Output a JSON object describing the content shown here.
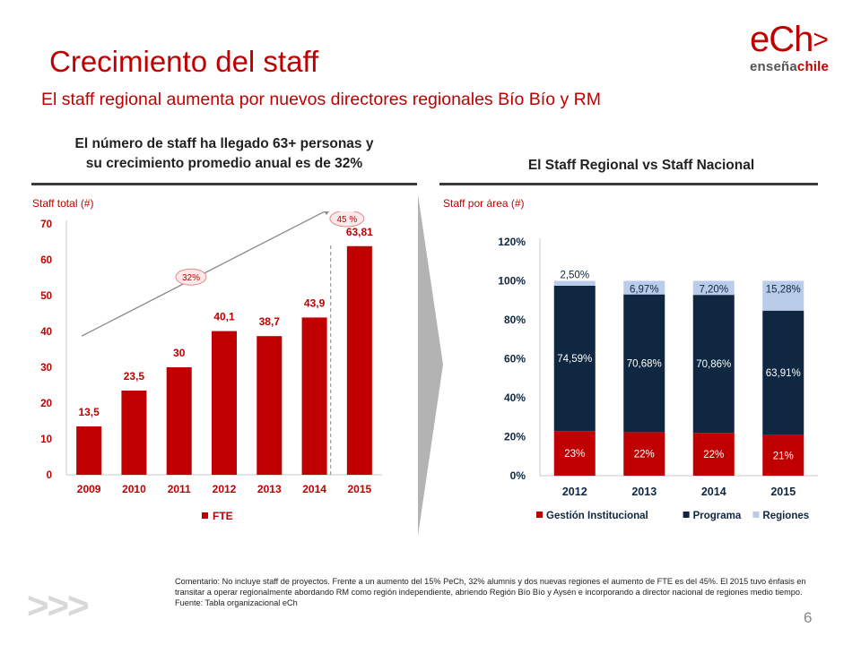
{
  "title": "Crecimiento del staff",
  "subtitle": "El staff regional aumenta por nuevos directores regionales Bío Bío y RM",
  "logo": {
    "main": "eCh",
    "arrow": ">",
    "tag_a": "enseña",
    "tag_b": "chile"
  },
  "left": {
    "heading_line1": "El número de staff ha llegado 63+ personas y",
    "heading_line2": "su crecimiento promedio anual es de 32%",
    "axis_label": "Staff total (#)"
  },
  "right": {
    "heading": "El Staff Regional vs Staff Nacional",
    "axis_label": "Staff por área (#)"
  },
  "colors": {
    "brand_red": "#c00000",
    "dark_navy": "#0f2740",
    "light_blue": "#b9cdea",
    "bar_red": "#c00000"
  },
  "chart_data": [
    {
      "type": "bar",
      "categories": [
        "2009",
        "2010",
        "2011",
        "2012",
        "2013",
        "2014",
        "2015"
      ],
      "values": [
        13.5,
        23.5,
        30,
        40.1,
        38.7,
        43.9,
        63.81
      ],
      "data_labels": [
        "13,5",
        "23,5",
        "30",
        "40,1",
        "38,7",
        "43,9",
        "63,81"
      ],
      "series_name": "FTE",
      "ylim": [
        0,
        70
      ],
      "yticks": [
        0,
        10,
        20,
        30,
        40,
        50,
        60,
        70
      ],
      "grid": false,
      "legend": "bottom",
      "annotations": [
        {
          "text": "32%",
          "kind": "growth-arrow"
        },
        {
          "text": "45 %",
          "kind": "bubble-2015"
        }
      ]
    },
    {
      "type": "bar",
      "stacked": true,
      "categories": [
        "2012",
        "2013",
        "2014",
        "2015"
      ],
      "ylim": [
        0,
        120
      ],
      "yticks": [
        "0%",
        "20%",
        "40%",
        "60%",
        "80%",
        "100%",
        "120%"
      ],
      "series": [
        {
          "name": "Gestión Institucional",
          "color": "#c00000",
          "values": [
            22.91,
            22.35,
            21.94,
            20.81
          ],
          "labels": [
            "23%",
            "22%",
            "22%",
            "21%"
          ]
        },
        {
          "name": "Programa",
          "color": "#0f2740",
          "values": [
            74.59,
            70.68,
            70.86,
            63.91
          ],
          "labels": [
            "74,59%",
            "70,68%",
            "70,86%",
            "63,91%"
          ]
        },
        {
          "name": "Regiones",
          "color": "#b9cdea",
          "values": [
            2.5,
            6.97,
            7.2,
            15.28
          ],
          "labels": [
            "2,50%",
            "6,97%",
            "7,20%",
            "15,28%"
          ]
        }
      ],
      "legend": "bottom"
    }
  ],
  "comment": "Comentario: No incluye staff de proyectos. Frente a un aumento del 15% PeCh, 32% alumnis y dos nuevas regiones el aumento de FTE es del 45%. El 2015 tuvo énfasis en transitar a operar regionalmente abordando RM como región independiente, abriendo Región Bío Bío y Aysén e incorporando a director nacional de regiones medio tiempo.",
  "source": "Fuente: Tabla organizacional eCh",
  "page_number": "6",
  "decor": {
    "chevrons": ">>>"
  }
}
